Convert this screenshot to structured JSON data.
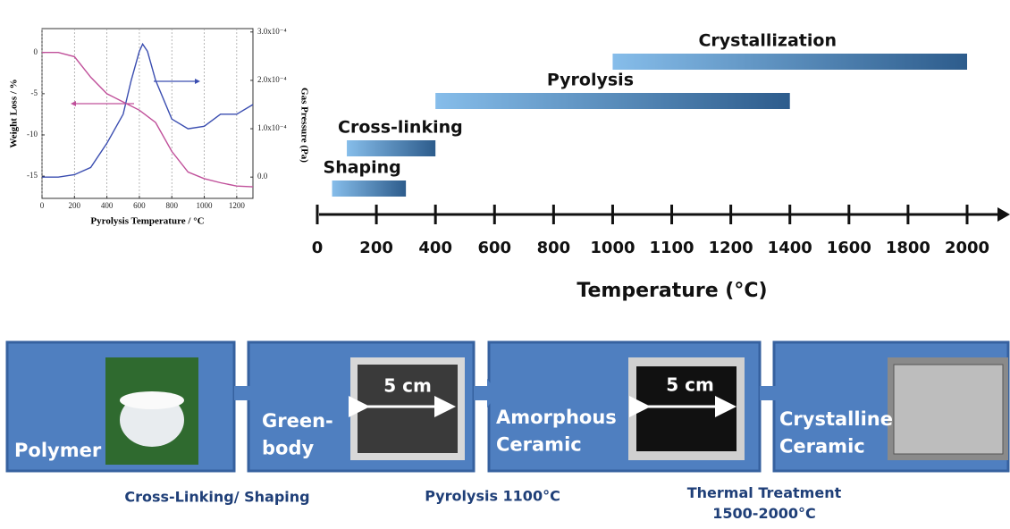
{
  "chart_data": [
    {
      "type": "line",
      "xlabel": "Pyrolysis Temperature / °C",
      "ylabel": "Weight Loss / %",
      "y2label": "Gas Pressure (Pa)",
      "xlim": [
        0,
        1300
      ],
      "xticks": [
        0,
        200,
        400,
        600,
        800,
        1000,
        1200
      ],
      "ylim": [
        -17.7,
        2.9
      ],
      "yticks": [
        0,
        -5,
        -10,
        -15
      ],
      "y2lim": [
        -4.4e-05,
        0.000307
      ],
      "y2ticks": [
        {
          "value": 0,
          "label": "0.0"
        },
        {
          "value": 0.0001,
          "label": "1.0x10⁻⁴"
        },
        {
          "value": 0.0002,
          "label": "2.0x10⁻⁴"
        },
        {
          "value": 0.0003,
          "label": "3.0x10⁻⁴"
        }
      ],
      "grid": "x",
      "series": [
        {
          "color": "#c0509a",
          "x": [
            0,
            100,
            200,
            300,
            400,
            500,
            600,
            700,
            800,
            900,
            1000,
            1100,
            1200,
            1300
          ],
          "values": [
            0,
            0,
            -0.5,
            -3,
            -5,
            -6,
            -7,
            -8.5,
            -12,
            -14.5,
            -15.3,
            -15.8,
            -16.2,
            -16.3
          ]
        },
        {
          "color": "#3a4db0",
          "axis": "y2",
          "x": [
            0,
            100,
            200,
            300,
            400,
            500,
            550,
            600,
            620,
            650,
            700,
            800,
            900,
            1000,
            1100,
            1200,
            1300
          ],
          "values": [
            0,
            0,
            5e-06,
            2e-05,
            7e-05,
            0.00013,
            0.0002,
            0.00026,
            0.000275,
            0.00026,
            0.0002,
            0.00012,
            0.0001,
            0.000105,
            0.00013,
            0.00013,
            0.00015
          ]
        }
      ]
    },
    {
      "type": "gantt",
      "xlabel": "Temperature (°C)",
      "xticks": [
        0,
        200,
        400,
        600,
        800,
        1000,
        1100,
        1200,
        1400,
        1600,
        1800,
        2000
      ],
      "tasks": [
        {
          "name": "Shaping",
          "start": 50,
          "end": 300
        },
        {
          "name": "Cross-linking",
          "start": 100,
          "end": 400
        },
        {
          "name": "Pyrolysis",
          "start": 400,
          "end": 1400
        },
        {
          "name": "Crystallization",
          "start": 1000,
          "end": 2000
        }
      ]
    }
  ],
  "flow": {
    "stages": [
      "Polymer",
      "Green-\nbody",
      "Amorphous\nCeramic",
      "Crystalline\nCeramic"
    ],
    "scale_labels": [
      "5 cm",
      "5 cm"
    ],
    "transitions": [
      "Cross-Linking/ Shaping",
      "Pyrolysis 1100°C",
      "Thermal Treatment\n1500-2000°C"
    ]
  }
}
